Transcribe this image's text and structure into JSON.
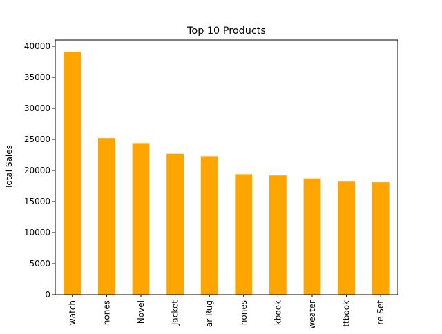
{
  "chart_data": {
    "type": "bar",
    "title": "Top 10 Products",
    "xlabel": "",
    "ylabel": "Total Sales",
    "categories": [
      "watch",
      "hones",
      "Novel",
      "Jacket",
      "ar Rug",
      "hones",
      "kbook",
      "weater",
      "ttbook",
      "re Set"
    ],
    "values": [
      39100,
      25200,
      24400,
      22700,
      22300,
      19400,
      19200,
      18700,
      18200,
      18100
    ],
    "ylim": [
      0,
      40000
    ],
    "yticks": [
      0,
      5000,
      10000,
      15000,
      20000,
      25000,
      30000,
      35000,
      40000
    ],
    "ytick_labels": [
      "0",
      "5000",
      "10000",
      "15000",
      "20000",
      "25000",
      "30000",
      "35000",
      "40000"
    ],
    "bar_color": "#FFA500",
    "grid": false,
    "legend": "none"
  }
}
